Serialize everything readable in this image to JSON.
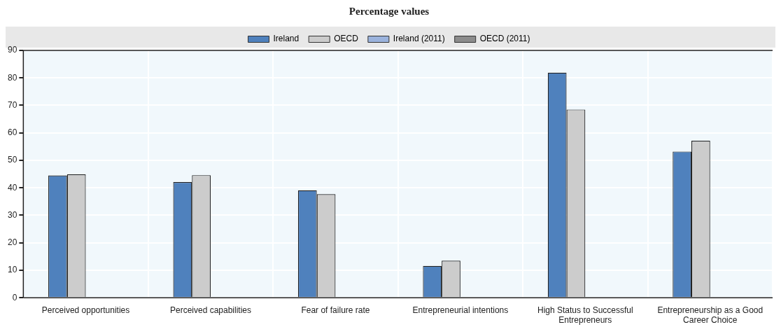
{
  "chart_data": {
    "type": "bar",
    "title": "Percentage values",
    "categories": [
      "Perceived opportunities",
      "Perceived capabilities",
      "Fear of failure rate",
      "Entrepreneurial intentions",
      "High Status to Successful Entrepreneurs",
      "Entrepreneurship as a Good Career Choice"
    ],
    "series": [
      {
        "name": "Ireland",
        "color": "#4f81bd",
        "values": [
          44.5,
          42.1,
          39.1,
          11.6,
          81.9,
          53.2
        ]
      },
      {
        "name": "OECD",
        "color": "#cccccc",
        "values": [
          44.9,
          44.6,
          37.7,
          13.5,
          68.5,
          57.1
        ]
      },
      {
        "name": "Ireland (2011)",
        "color": "#9bb3dd",
        "values": [
          null,
          null,
          null,
          null,
          null,
          null
        ]
      },
      {
        "name": "OECD (2011)",
        "color": "#8c8c8c",
        "values": [
          null,
          null,
          null,
          null,
          null,
          null
        ]
      }
    ],
    "ylim": [
      0,
      90
    ],
    "yticks": [
      0,
      10,
      20,
      30,
      40,
      50,
      60,
      70,
      80,
      90
    ],
    "grid": true,
    "legend": "top"
  }
}
